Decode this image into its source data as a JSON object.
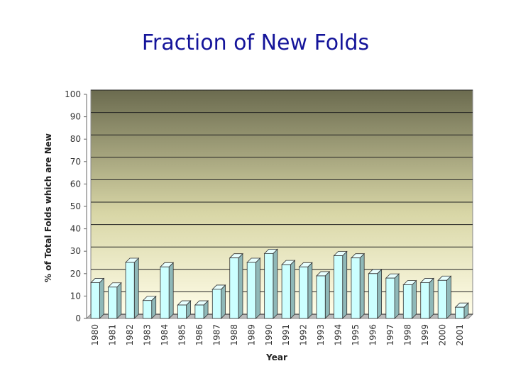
{
  "chart_data": {
    "type": "bar",
    "title": "Fraction of New Folds",
    "x_label": "Year",
    "y_label": "% of Total Folds which are New",
    "categories": [
      "1980",
      "1981",
      "1982",
      "1983",
      "1984",
      "1985",
      "1986",
      "1987",
      "1988",
      "1989",
      "1990",
      "1991",
      "1992",
      "1993",
      "1994",
      "1995",
      "1996",
      "1997",
      "1998",
      "1999",
      "2000",
      "2001"
    ],
    "values": [
      16,
      14,
      25,
      8,
      23,
      6,
      6,
      13,
      27,
      25,
      29,
      24,
      23,
      19,
      28,
      27,
      20,
      18,
      15,
      16,
      17,
      5
    ],
    "color": "#ccffff",
    "ylim": [
      0,
      100
    ],
    "yticks": [
      0,
      10,
      20,
      30,
      40,
      50,
      60,
      70,
      80,
      90,
      100
    ],
    "grid": true
  }
}
